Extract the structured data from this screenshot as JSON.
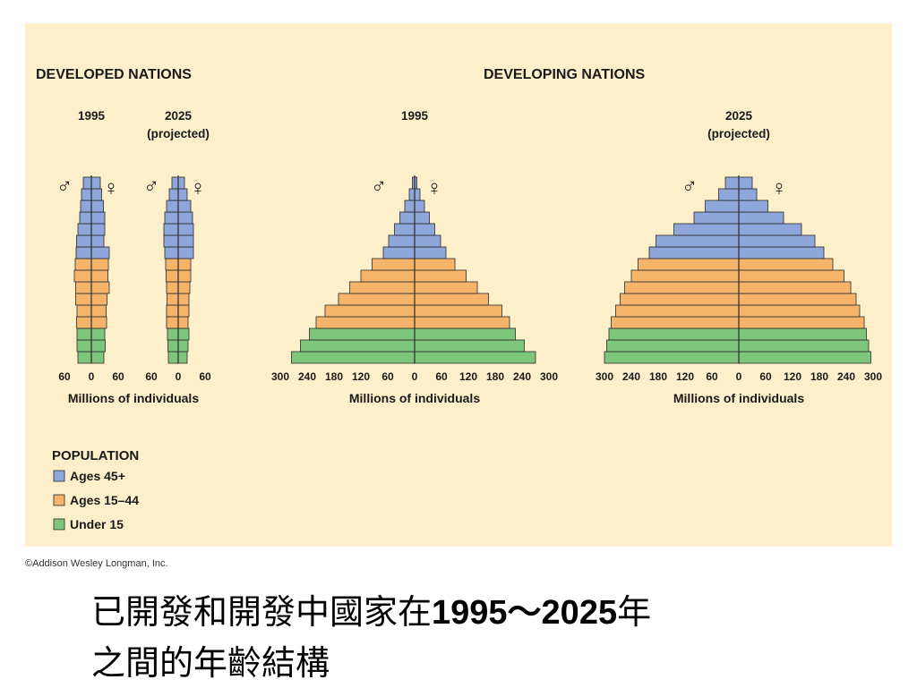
{
  "colors": {
    "older": "#8ea6d9",
    "middle": "#f6b46a",
    "young": "#7dc67b",
    "outline": "#2b2b2b",
    "panel": "#fcefca"
  },
  "headings": {
    "developed": "DEVELOPED NATIONS",
    "developing": "DEVELOPING NATIONS"
  },
  "copyright": "©Addison Wesley Longman, Inc.",
  "caption": {
    "line1_a": "已開發和開發中國家在",
    "line1_b": "1995～2025",
    "line1_c": "年",
    "line2": "之間的年齡結構"
  },
  "legend": {
    "title": "POPULATION",
    "items": [
      "Ages 45+",
      "Ages 15–44",
      "Under 15"
    ]
  },
  "symbols": {
    "male": "♂",
    "female": "♀"
  },
  "chart_data": [
    {
      "type": "bar",
      "group": "developed",
      "year": "1995",
      "subtitle": "",
      "ticks": [
        "60",
        "0",
        "60"
      ],
      "xlabel": "",
      "xmax": 60,
      "age_groups": [
        "Under 15 (youngest)",
        "...",
        "Ages 45+ (oldest)"
      ],
      "male": [
        30,
        32,
        32,
        33,
        32,
        35,
        35,
        38,
        36,
        34,
        33,
        30,
        26,
        24,
        22,
        18
      ],
      "female": [
        28,
        31,
        30,
        34,
        33,
        35,
        40,
        37,
        38,
        40,
        28,
        30,
        30,
        27,
        23,
        20
      ]
    },
    {
      "type": "bar",
      "group": "developed",
      "year": "2025",
      "subtitle": "(projected)",
      "ticks": [
        "60",
        "0",
        "60"
      ],
      "xlabel": "Millions of individuals",
      "xmax": 60,
      "male": [
        22,
        23,
        24,
        26,
        26,
        25,
        26,
        27,
        28,
        30,
        32,
        32,
        30,
        26,
        20,
        14
      ],
      "female": [
        20,
        22,
        24,
        22,
        24,
        24,
        26,
        28,
        28,
        34,
        34,
        34,
        32,
        28,
        20,
        14
      ]
    },
    {
      "type": "bar",
      "group": "developing",
      "year": "1995",
      "subtitle": "",
      "ticks": [
        "300",
        "240",
        "180",
        "120",
        "60",
        "0",
        "60",
        "120",
        "180",
        "240",
        "300"
      ],
      "xlabel": "Millions of individuals",
      "xmax": 300,
      "male": [
        275,
        255,
        235,
        220,
        200,
        170,
        145,
        120,
        95,
        70,
        58,
        45,
        33,
        22,
        12,
        5
      ],
      "female": [
        270,
        245,
        225,
        212,
        195,
        165,
        140,
        115,
        90,
        70,
        58,
        45,
        33,
        22,
        12,
        5
      ]
    },
    {
      "type": "bar",
      "group": "developing",
      "year": "2025",
      "subtitle": "(projected)",
      "ticks": [
        "300",
        "240",
        "180",
        "120",
        "60",
        "0",
        "60",
        "120",
        "180",
        "240",
        "300"
      ],
      "xlabel": "Millions of individuals",
      "xmax": 300,
      "male": [
        300,
        295,
        290,
        285,
        275,
        265,
        255,
        240,
        225,
        200,
        185,
        145,
        100,
        75,
        45,
        30
      ],
      "female": [
        295,
        290,
        285,
        280,
        270,
        262,
        250,
        235,
        210,
        190,
        170,
        140,
        100,
        65,
        40,
        30
      ]
    }
  ]
}
